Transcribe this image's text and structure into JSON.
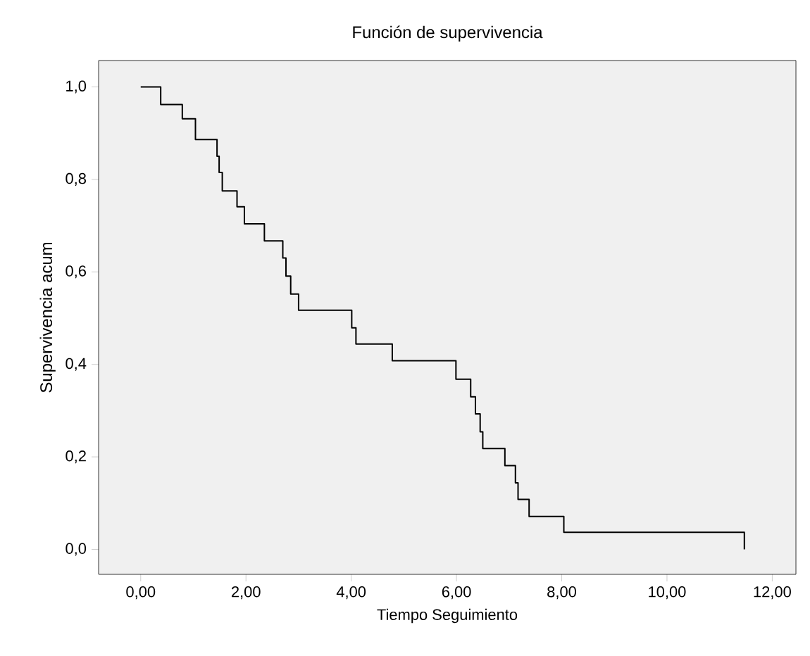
{
  "chart_data": {
    "type": "step",
    "title": "Función de supervivencia",
    "xlabel": "Tiempo Seguimiento",
    "ylabel": "Supervivencia acum",
    "x": [
      0,
      0.38,
      0.79,
      1.04,
      1.45,
      1.49,
      1.55,
      1.83,
      1.97,
      2.35,
      2.7,
      2.76,
      2.85,
      3.0,
      4.01,
      4.09,
      4.78,
      5.99,
      6.27,
      6.36,
      6.45,
      6.5,
      6.92,
      7.12,
      7.17,
      7.38,
      8.04,
      11.47
    ],
    "values": [
      1.0,
      0.962,
      0.931,
      0.886,
      0.85,
      0.815,
      0.775,
      0.741,
      0.704,
      0.667,
      0.63,
      0.591,
      0.552,
      0.517,
      0.479,
      0.444,
      0.408,
      0.368,
      0.33,
      0.293,
      0.254,
      0.218,
      0.181,
      0.144,
      0.108,
      0.071,
      0.037,
      0.0
    ],
    "color": "#000000",
    "xlim": [
      -0.8,
      12.45
    ],
    "ylim": [
      -0.054,
      1.057
    ],
    "xticks": [
      {
        "value": 0,
        "label": "0,00"
      },
      {
        "value": 2,
        "label": "2,00"
      },
      {
        "value": 4,
        "label": "4,00"
      },
      {
        "value": 6,
        "label": "6,00"
      },
      {
        "value": 8,
        "label": "8,00"
      },
      {
        "value": 10,
        "label": "10,00"
      },
      {
        "value": 12,
        "label": "12,00"
      }
    ],
    "yticks": [
      {
        "value": 0,
        "label": "0,0"
      },
      {
        "value": 0.2,
        "label": "0,2"
      },
      {
        "value": 0.4,
        "label": "0,4"
      },
      {
        "value": 0.6,
        "label": "0,6"
      },
      {
        "value": 0.8,
        "label": "0,8"
      },
      {
        "value": 1,
        "label": "1,0"
      }
    ],
    "grid": false
  }
}
